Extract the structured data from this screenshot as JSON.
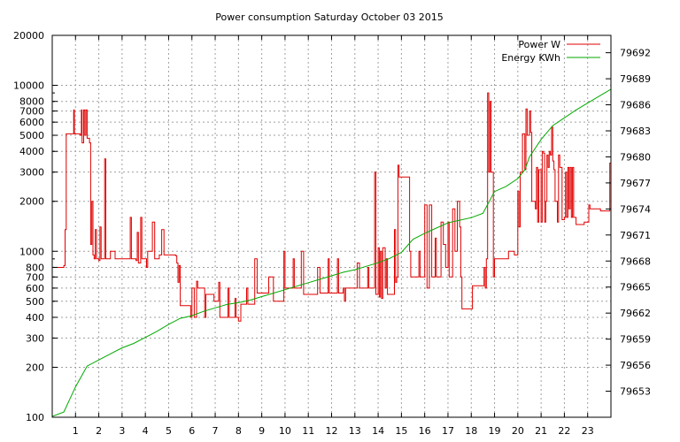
{
  "chart_data": {
    "type": "line",
    "title": "Power consumption Saturday October 03 2015",
    "x_ticks": [
      1,
      2,
      3,
      4,
      5,
      6,
      7,
      8,
      9,
      10,
      11,
      12,
      13,
      14,
      15,
      16,
      17,
      18,
      19,
      20,
      21,
      22,
      23
    ],
    "xlim": [
      0,
      24
    ],
    "y_left": {
      "scale": "log",
      "ylim": [
        100,
        20000
      ],
      "ticks": [
        100,
        200,
        300,
        400,
        500,
        600,
        700,
        800,
        1000,
        2000,
        3000,
        4000,
        5000,
        6000,
        7000,
        8000,
        10000,
        20000
      ],
      "tick_labels": [
        "100",
        "200",
        "300",
        "400",
        "500",
        "600",
        "700",
        "800",
        "1000",
        "2000",
        "3000",
        "4000",
        "5000",
        "6000",
        "7000",
        "8000",
        "10000",
        "20000"
      ]
    },
    "y_right": {
      "scale": "linear",
      "ylim": [
        79650,
        79694
      ],
      "ticks": [
        79653,
        79656,
        79659,
        79662,
        79665,
        79668,
        79671,
        79674,
        79677,
        79680,
        79683,
        79686,
        79689,
        79692
      ],
      "tick_labels": [
        "79653",
        "79656",
        "79659",
        "79662",
        "79665",
        "79668",
        "79671",
        "79674",
        "79677",
        "79680",
        "79683",
        "79686",
        "79689",
        "79692"
      ]
    },
    "grid": true,
    "legend_position": "top-right",
    "series": [
      {
        "name": "Power W",
        "color": "#e00000",
        "axis": "left",
        "points": [
          [
            0,
            800
          ],
          [
            0.5,
            820
          ],
          [
            0.55,
            1350
          ],
          [
            0.6,
            5100
          ],
          [
            0.9,
            5100
          ],
          [
            0.92,
            7100
          ],
          [
            0.95,
            5100
          ],
          [
            1.2,
            5000
          ],
          [
            1.25,
            7100
          ],
          [
            1.28,
            4500
          ],
          [
            1.35,
            7100
          ],
          [
            1.4,
            5000
          ],
          [
            1.45,
            7100
          ],
          [
            1.5,
            4800
          ],
          [
            1.6,
            4500
          ],
          [
            1.65,
            1100
          ],
          [
            1.7,
            2000
          ],
          [
            1.75,
            950
          ],
          [
            1.8,
            900
          ],
          [
            1.85,
            1350
          ],
          [
            1.9,
            900
          ],
          [
            2.0,
            880
          ],
          [
            2.05,
            1400
          ],
          [
            2.1,
            900
          ],
          [
            2.2,
            900
          ],
          [
            2.25,
            3600
          ],
          [
            2.3,
            900
          ],
          [
            2.5,
            1000
          ],
          [
            2.6,
            1000
          ],
          [
            2.7,
            900
          ],
          [
            3.0,
            900
          ],
          [
            3.3,
            900
          ],
          [
            3.35,
            1600
          ],
          [
            3.4,
            900
          ],
          [
            3.6,
            880
          ],
          [
            3.65,
            1300
          ],
          [
            3.7,
            850
          ],
          [
            3.8,
            1600
          ],
          [
            3.85,
            900
          ],
          [
            4.0,
            900
          ],
          [
            4.05,
            800
          ],
          [
            4.1,
            1000
          ],
          [
            4.3,
            1500
          ],
          [
            4.4,
            900
          ],
          [
            4.6,
            950
          ],
          [
            4.7,
            1350
          ],
          [
            4.8,
            950
          ],
          [
            5.0,
            950
          ],
          [
            5.3,
            940
          ],
          [
            5.35,
            850
          ],
          [
            5.4,
            650
          ],
          [
            5.45,
            820
          ],
          [
            5.5,
            470
          ],
          [
            5.9,
            470
          ],
          [
            5.95,
            400
          ],
          [
            6.0,
            600
          ],
          [
            6.1,
            400
          ],
          [
            6.2,
            660
          ],
          [
            6.25,
            600
          ],
          [
            6.5,
            600
          ],
          [
            6.55,
            400
          ],
          [
            6.6,
            550
          ],
          [
            6.9,
            550
          ],
          [
            6.95,
            500
          ],
          [
            7.1,
            500
          ],
          [
            7.15,
            650
          ],
          [
            7.2,
            400
          ],
          [
            7.5,
            400
          ],
          [
            7.55,
            600
          ],
          [
            7.6,
            400
          ],
          [
            7.8,
            400
          ],
          [
            7.85,
            520
          ],
          [
            7.9,
            400
          ],
          [
            8.0,
            380
          ],
          [
            8.1,
            480
          ],
          [
            8.3,
            480
          ],
          [
            8.35,
            600
          ],
          [
            8.4,
            480
          ],
          [
            8.6,
            480
          ],
          [
            8.7,
            900
          ],
          [
            8.8,
            560
          ],
          [
            9.2,
            560
          ],
          [
            9.3,
            700
          ],
          [
            9.4,
            700
          ],
          [
            9.5,
            500
          ],
          [
            9.8,
            500
          ],
          [
            9.95,
            1000
          ],
          [
            10.0,
            600
          ],
          [
            10.3,
            600
          ],
          [
            10.35,
            900
          ],
          [
            10.4,
            600
          ],
          [
            10.6,
            600
          ],
          [
            10.7,
            1000
          ],
          [
            10.8,
            550
          ],
          [
            11.3,
            550
          ],
          [
            11.4,
            800
          ],
          [
            11.5,
            560
          ],
          [
            11.8,
            560
          ],
          [
            11.85,
            900
          ],
          [
            11.9,
            560
          ],
          [
            12.2,
            560
          ],
          [
            12.25,
            900
          ],
          [
            12.3,
            560
          ],
          [
            12.5,
            600
          ],
          [
            12.55,
            500
          ],
          [
            12.6,
            600
          ],
          [
            13.0,
            600
          ],
          [
            13.1,
            850
          ],
          [
            13.2,
            600
          ],
          [
            13.5,
            600
          ],
          [
            13.55,
            800
          ],
          [
            13.6,
            600
          ],
          [
            13.8,
            600
          ],
          [
            13.85,
            3000
          ],
          [
            13.9,
            550
          ],
          [
            14.0,
            1050
          ],
          [
            14.05,
            530
          ],
          [
            14.1,
            1000
          ],
          [
            14.15,
            520
          ],
          [
            14.2,
            1050
          ],
          [
            14.3,
            600
          ],
          [
            14.35,
            900
          ],
          [
            14.4,
            550
          ],
          [
            14.6,
            550
          ],
          [
            14.7,
            1350
          ],
          [
            14.75,
            650
          ],
          [
            14.8,
            700
          ],
          [
            14.85,
            3300
          ],
          [
            14.9,
            2800
          ],
          [
            15.3,
            2800
          ],
          [
            15.35,
            1000
          ],
          [
            15.4,
            700
          ],
          [
            15.7,
            700
          ],
          [
            15.75,
            1000
          ],
          [
            15.8,
            700
          ],
          [
            16.0,
            1900
          ],
          [
            16.1,
            600
          ],
          [
            16.2,
            1900
          ],
          [
            16.3,
            700
          ],
          [
            16.4,
            700
          ],
          [
            16.45,
            1200
          ],
          [
            16.5,
            700
          ],
          [
            16.6,
            700
          ],
          [
            16.7,
            1500
          ],
          [
            16.8,
            1100
          ],
          [
            16.9,
            800
          ],
          [
            17.0,
            1500
          ],
          [
            17.05,
            700
          ],
          [
            17.15,
            700
          ],
          [
            17.2,
            1800
          ],
          [
            17.3,
            1000
          ],
          [
            17.4,
            2000
          ],
          [
            17.5,
            1400
          ],
          [
            17.55,
            700
          ],
          [
            17.6,
            450
          ],
          [
            17.9,
            450
          ],
          [
            18.0,
            450
          ],
          [
            18.05,
            620
          ],
          [
            18.1,
            620
          ],
          [
            18.5,
            620
          ],
          [
            18.55,
            800
          ],
          [
            18.6,
            600
          ],
          [
            18.65,
            900
          ],
          [
            18.7,
            9000
          ],
          [
            18.75,
            3000
          ],
          [
            18.8,
            8000
          ],
          [
            18.85,
            3000
          ],
          [
            18.9,
            3000
          ],
          [
            18.95,
            700
          ],
          [
            19.0,
            900
          ],
          [
            19.5,
            900
          ],
          [
            19.6,
            1000
          ],
          [
            19.8,
            1000
          ],
          [
            19.85,
            950
          ],
          [
            19.9,
            950
          ],
          [
            20.0,
            2300
          ],
          [
            20.05,
            1400
          ],
          [
            20.1,
            3000
          ],
          [
            20.2,
            5100
          ],
          [
            20.3,
            3100
          ],
          [
            20.35,
            7200
          ],
          [
            20.4,
            5000
          ],
          [
            20.5,
            7000
          ],
          [
            20.55,
            5200
          ],
          [
            20.6,
            2000
          ],
          [
            20.7,
            2000
          ],
          [
            20.75,
            1800
          ],
          [
            20.8,
            3200
          ],
          [
            20.85,
            1500
          ],
          [
            20.9,
            3100
          ],
          [
            21.0,
            1500
          ],
          [
            21.05,
            4000
          ],
          [
            21.1,
            3900
          ],
          [
            21.15,
            1500
          ],
          [
            21.2,
            2000
          ],
          [
            21.25,
            3800
          ],
          [
            21.3,
            3200
          ],
          [
            21.35,
            4000
          ],
          [
            21.4,
            3800
          ],
          [
            21.45,
            5600
          ],
          [
            21.5,
            3500
          ],
          [
            21.55,
            3100
          ],
          [
            21.6,
            2000
          ],
          [
            21.7,
            1500
          ],
          [
            21.75,
            3800
          ],
          [
            21.8,
            3200
          ],
          [
            21.9,
            1550
          ],
          [
            22.0,
            1600
          ],
          [
            22.05,
            3000
          ],
          [
            22.1,
            1600
          ],
          [
            22.15,
            3200
          ],
          [
            22.2,
            1800
          ],
          [
            22.25,
            3200
          ],
          [
            22.3,
            1600
          ],
          [
            22.35,
            3200
          ],
          [
            22.4,
            1600
          ],
          [
            22.5,
            1450
          ],
          [
            22.8,
            1450
          ],
          [
            22.85,
            1500
          ],
          [
            23.0,
            1500
          ],
          [
            23.05,
            1900
          ],
          [
            23.1,
            1800
          ],
          [
            23.5,
            1800
          ],
          [
            23.55,
            1750
          ],
          [
            23.9,
            1750
          ],
          [
            23.95,
            3400
          ],
          [
            24.0,
            1700
          ]
        ]
      },
      {
        "name": "Energy KWh",
        "color": "#00aa00",
        "axis": "right",
        "points": [
          [
            0,
            79650.1
          ],
          [
            0.5,
            79650.6
          ],
          [
            1.0,
            79653.5
          ],
          [
            1.5,
            79655.9
          ],
          [
            2.0,
            79656.6
          ],
          [
            2.5,
            79657.3
          ],
          [
            3.0,
            79658.0
          ],
          [
            3.5,
            79658.5
          ],
          [
            4.0,
            79659.2
          ],
          [
            4.5,
            79659.9
          ],
          [
            5.0,
            79660.7
          ],
          [
            5.5,
            79661.4
          ],
          [
            6.0,
            79661.7
          ],
          [
            6.5,
            79662.2
          ],
          [
            7.0,
            79662.6
          ],
          [
            7.5,
            79663.0
          ],
          [
            8.0,
            79663.2
          ],
          [
            8.5,
            79663.5
          ],
          [
            9.0,
            79663.9
          ],
          [
            9.5,
            79664.3
          ],
          [
            10.0,
            79664.7
          ],
          [
            10.5,
            79665.1
          ],
          [
            11.0,
            79665.5
          ],
          [
            11.5,
            79665.9
          ],
          [
            12.0,
            79666.3
          ],
          [
            12.5,
            79666.7
          ],
          [
            13.0,
            79667.0
          ],
          [
            13.5,
            79667.4
          ],
          [
            14.0,
            79667.8
          ],
          [
            14.5,
            79668.3
          ],
          [
            15.0,
            79669.0
          ],
          [
            15.5,
            79670.5
          ],
          [
            16.0,
            79671.2
          ],
          [
            16.5,
            79671.8
          ],
          [
            17.0,
            79672.4
          ],
          [
            17.5,
            79672.7
          ],
          [
            18.0,
            79673.0
          ],
          [
            18.5,
            79673.5
          ],
          [
            19.0,
            79676.0
          ],
          [
            19.5,
            79676.6
          ],
          [
            20.0,
            79677.5
          ],
          [
            20.3,
            79678.5
          ],
          [
            20.5,
            79680.0
          ],
          [
            21.0,
            79682.0
          ],
          [
            21.5,
            79683.6
          ],
          [
            22.0,
            79684.5
          ],
          [
            22.5,
            79685.4
          ],
          [
            23.0,
            79686.2
          ],
          [
            23.5,
            79687.0
          ],
          [
            24.0,
            79687.8
          ]
        ]
      }
    ]
  }
}
